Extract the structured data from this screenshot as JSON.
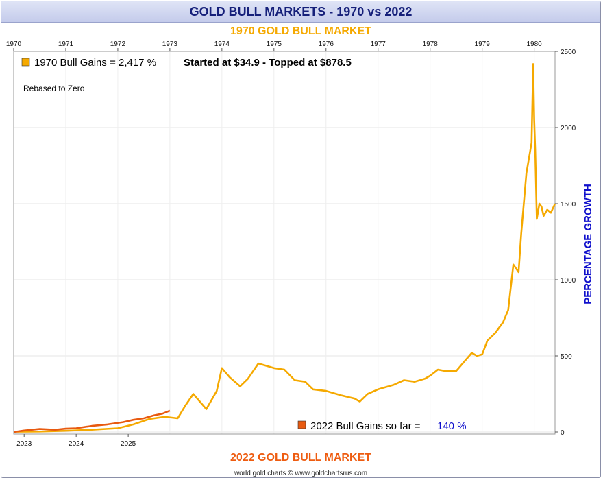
{
  "header": {
    "title": "GOLD BULL MARKETS - 1970 vs 2022"
  },
  "top_label": "1970 GOLD BULL MARKET",
  "bottom_label": "2022 GOLD BULL MARKET",
  "footer": "world gold charts © www.goldchartsrus.com",
  "colors": {
    "series_1970": "#f5a900",
    "series_2022": "#e85a10",
    "accent_blue": "#1010cc",
    "title": "#16207a"
  },
  "legend": {
    "series_1970_label": "1970 Bull Gains = 2,417 %",
    "series_1970_note": "Started at $34.9 - Topped at $878.5",
    "rebased_note": "Rebased to Zero",
    "series_2022_label": "2022 Bull Gains so far =",
    "series_2022_value": "140 %"
  },
  "chart_data": {
    "type": "line",
    "ylabel": "PERCENTAGE GROWTH",
    "ylim": [
      0,
      2500
    ],
    "y_ticks": [
      0,
      500,
      1000,
      1500,
      2000,
      2500
    ],
    "grid": true,
    "x_top_axis": {
      "label": "1970 GOLD BULL MARKET",
      "range": [
        1970.0,
        1980.4
      ],
      "ticks": [
        "1970",
        "1971",
        "1972",
        "1973",
        "1974",
        "1975",
        "1976",
        "1977",
        "1978",
        "1979",
        "1980"
      ]
    },
    "x_bottom_axis": {
      "label": "2022 GOLD BULL MARKET",
      "range": [
        2022.8,
        2033.2
      ],
      "ticks": [
        "2023",
        "2024",
        "2025"
      ]
    },
    "series": [
      {
        "name": "1970 Bull Gains",
        "axis": "top",
        "x": [
          1970.0,
          1970.5,
          1971.0,
          1971.5,
          1972.0,
          1972.3,
          1972.6,
          1972.9,
          1973.15,
          1973.3,
          1973.45,
          1973.55,
          1973.7,
          1973.9,
          1974.0,
          1974.15,
          1974.35,
          1974.5,
          1974.7,
          1974.9,
          1975.0,
          1975.2,
          1975.4,
          1975.6,
          1975.75,
          1976.0,
          1976.3,
          1976.55,
          1976.65,
          1976.8,
          1977.0,
          1977.3,
          1977.5,
          1977.7,
          1977.9,
          1978.0,
          1978.15,
          1978.3,
          1978.5,
          1978.7,
          1978.8,
          1978.9,
          1979.0,
          1979.1,
          1979.25,
          1979.4,
          1979.5,
          1979.6,
          1979.7,
          1979.75,
          1979.85,
          1979.95,
          1979.98,
          1980.0,
          1980.02,
          1980.05,
          1980.1,
          1980.14,
          1980.18,
          1980.25,
          1980.32,
          1980.4
        ],
        "values": [
          2,
          3,
          8,
          15,
          25,
          50,
          85,
          100,
          90,
          175,
          250,
          210,
          150,
          270,
          420,
          360,
          300,
          350,
          450,
          430,
          420,
          410,
          340,
          330,
          280,
          270,
          240,
          220,
          200,
          250,
          280,
          310,
          340,
          330,
          350,
          370,
          410,
          400,
          400,
          480,
          520,
          500,
          510,
          600,
          650,
          720,
          800,
          1100,
          1050,
          1300,
          1700,
          1900,
          2417,
          2050,
          1850,
          1400,
          1500,
          1480,
          1420,
          1460,
          1440,
          1500
        ]
      },
      {
        "name": "2022 Bull Gains",
        "axis": "bottom",
        "x": [
          2022.8,
          2023.0,
          2023.3,
          2023.6,
          2023.8,
          2024.0,
          2024.3,
          2024.6,
          2024.9,
          2025.1,
          2025.3,
          2025.5,
          2025.65,
          2025.8
        ],
        "values": [
          0,
          10,
          20,
          15,
          22,
          25,
          40,
          50,
          65,
          80,
          90,
          110,
          120,
          140
        ]
      }
    ]
  }
}
